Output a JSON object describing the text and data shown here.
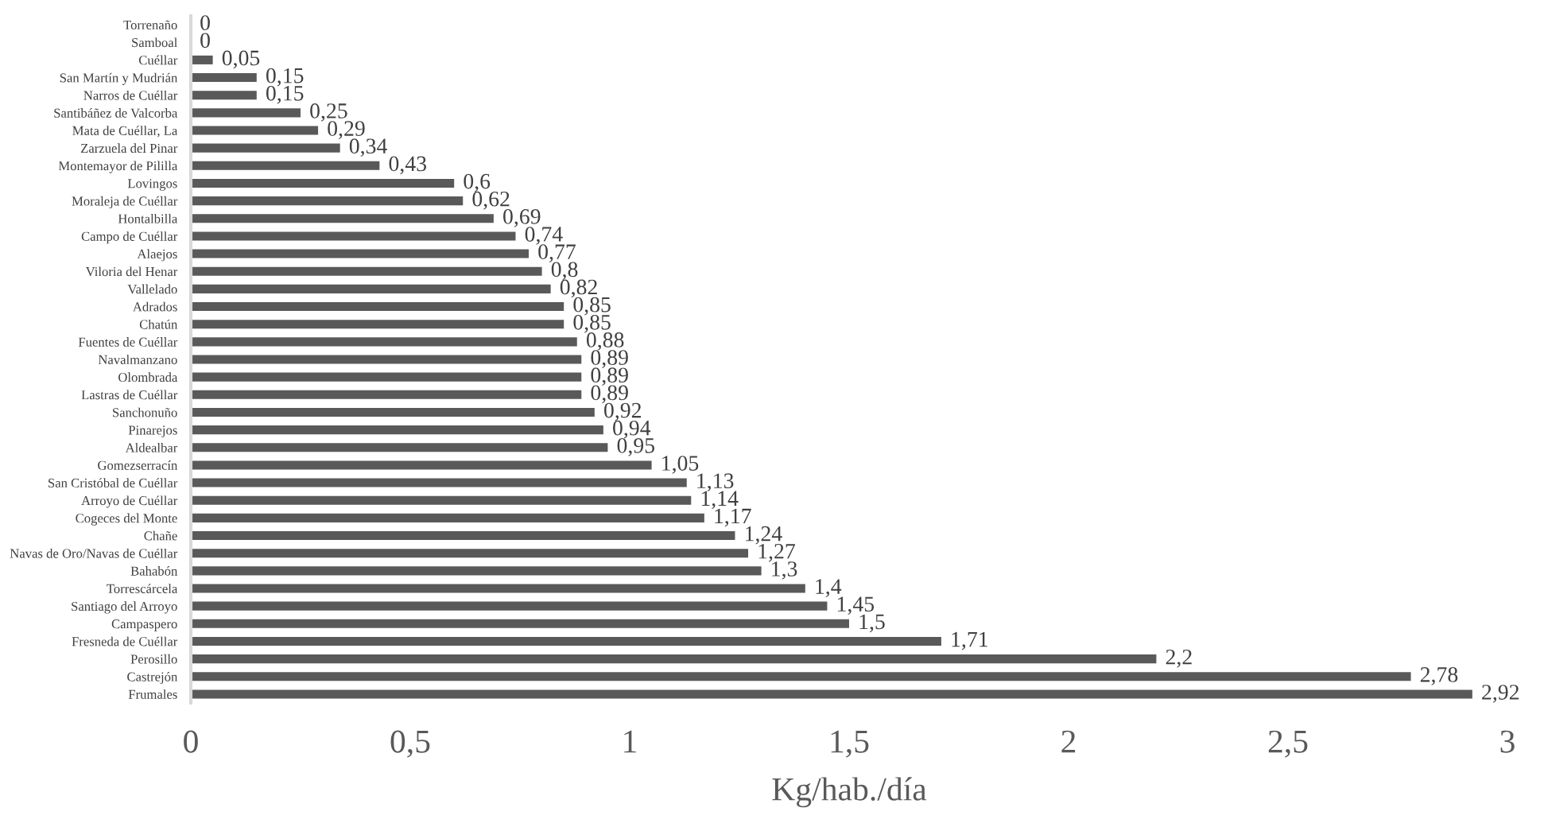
{
  "chart_data": {
    "type": "bar",
    "orientation": "horizontal",
    "xlabel": "Kg/hab./día",
    "categories": [
      "Torrenaño",
      "Samboal",
      "Cuéllar",
      "San Martín y Mudrián",
      "Narros de Cuéllar",
      "Santibáñez de Valcorba",
      "Mata de Cuéllar, La",
      "Zarzuela del Pinar",
      "Montemayor de Pililla",
      "Lovingos",
      "Moraleja de Cuéllar",
      "Hontalbilla",
      "Campo de Cuéllar",
      "Alaejos",
      "Viloria del Henar",
      "Vallelado",
      "Adrados",
      "Chatún",
      "Fuentes de Cuéllar",
      "Navalmanzano",
      "Olombrada",
      "Lastras de Cuéllar",
      "Sanchonuño",
      "Pinarejos",
      "Aldealbar",
      "Gomezserracín",
      "San Cristóbal de Cuéllar",
      "Arroyo de Cuéllar",
      "Cogeces del Monte",
      "Chañe",
      "Navas de Oro/Navas de Cuéllar",
      "Bahabón",
      "Torrescárcela",
      "Santiago del Arroyo",
      "Campaspero",
      "Fresneda de Cuéllar",
      "Perosillo",
      "Castrejón",
      "Frumales"
    ],
    "values": [
      0,
      0,
      0.05,
      0.15,
      0.15,
      0.25,
      0.29,
      0.34,
      0.43,
      0.6,
      0.62,
      0.69,
      0.74,
      0.77,
      0.8,
      0.82,
      0.85,
      0.85,
      0.88,
      0.89,
      0.89,
      0.89,
      0.92,
      0.94,
      0.95,
      1.05,
      1.13,
      1.14,
      1.17,
      1.24,
      1.27,
      1.3,
      1.4,
      1.45,
      1.5,
      1.71,
      2.2,
      2.78,
      2.92
    ],
    "value_labels": [
      "0",
      "0",
      "0,05",
      "0,15",
      "0,15",
      "0,25",
      "0,29",
      "0,34",
      "0,43",
      "0,6",
      "0,62",
      "0,69",
      "0,74",
      "0,77",
      "0,8",
      "0,82",
      "0,85",
      "0,85",
      "0,88",
      "0,89",
      "0,89",
      "0,89",
      "0,92",
      "0,94",
      "0,95",
      "1,05",
      "1,13",
      "1,14",
      "1,17",
      "1,24",
      "1,27",
      "1,3",
      "1,4",
      "1,45",
      "1,5",
      "1,71",
      "2,2",
      "2,78",
      "2,92"
    ],
    "color": "#595959",
    "xlim": [
      0,
      3
    ],
    "xticks": [
      0,
      {
        "value": 0.5,
        "label": "0,5"
      },
      1,
      {
        "value": 1.5,
        "label": "1,5"
      },
      2,
      {
        "value": 2.5,
        "label": "2,5"
      },
      3
    ],
    "grid": false
  }
}
